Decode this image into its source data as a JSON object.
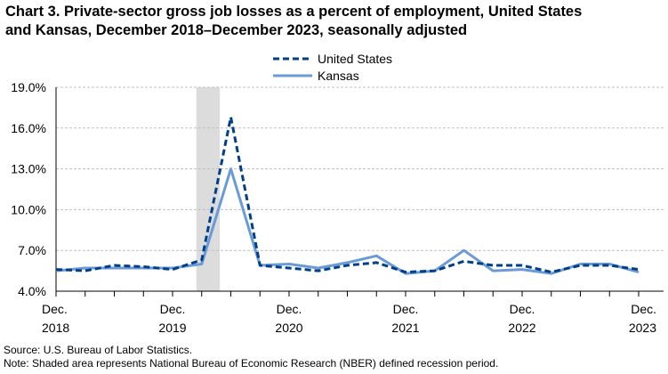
{
  "title_line1": "Chart 3. Private-sector gross job losses as a percent of employment, United States",
  "title_line2": "and Kansas, December 2018–December 2023, seasonally adjusted",
  "footer": {
    "source": "Source: U.S. Bureau of Labor Statistics.",
    "note": "Note: Shaded area represents National Bureau of Economic Research (NBER) defined recession period."
  },
  "colors": {
    "us": "#003f8a",
    "kansas": "#6b9bd6",
    "recession": "#dcdcdc",
    "grid": "#bfbfbf"
  },
  "chart_data": {
    "type": "line",
    "title": "Private-sector gross job losses as a percent of employment, United States and Kansas, December 2018–December 2023, seasonally adjusted",
    "ylim": [
      4.0,
      19.0
    ],
    "y_ticks": [
      "4.0%",
      "7.0%",
      "10.0%",
      "13.0%",
      "16.0%",
      "19.0%"
    ],
    "x_tick_labels": [
      [
        "Dec.",
        "2018"
      ],
      [
        "Dec.",
        "2019"
      ],
      [
        "Dec.",
        "2020"
      ],
      [
        "Dec.",
        "2021"
      ],
      [
        "Dec.",
        "2022"
      ],
      [
        "Dec.",
        "2023"
      ]
    ],
    "x": [
      "Dec 2018",
      "Mar 2019",
      "Jun 2019",
      "Sep 2019",
      "Dec 2019",
      "Mar 2020",
      "Jun 2020",
      "Sep 2020",
      "Dec 2020",
      "Mar 2021",
      "Jun 2021",
      "Sep 2021",
      "Dec 2021",
      "Mar 2022",
      "Jun 2022",
      "Sep 2022",
      "Dec 2022",
      "Mar 2023",
      "Jun 2023",
      "Sep 2023",
      "Dec 2023"
    ],
    "recession": {
      "start": "Mar 2020",
      "end": "Jun 2020"
    },
    "grid": true,
    "legend_position": "top-center",
    "series": [
      {
        "name": "United States",
        "style": "dashed",
        "values": [
          5.6,
          5.5,
          5.9,
          5.8,
          5.6,
          6.3,
          16.8,
          5.9,
          5.7,
          5.5,
          5.9,
          6.1,
          5.4,
          5.5,
          6.2,
          5.9,
          5.9,
          5.4,
          5.9,
          5.9,
          5.6
        ]
      },
      {
        "name": "Kansas",
        "style": "solid",
        "values": [
          5.5,
          5.7,
          5.7,
          5.7,
          5.7,
          6.0,
          13.0,
          5.9,
          6.0,
          5.7,
          6.1,
          6.6,
          5.3,
          5.5,
          7.0,
          5.5,
          5.6,
          5.3,
          6.0,
          6.0,
          5.4
        ]
      }
    ]
  }
}
